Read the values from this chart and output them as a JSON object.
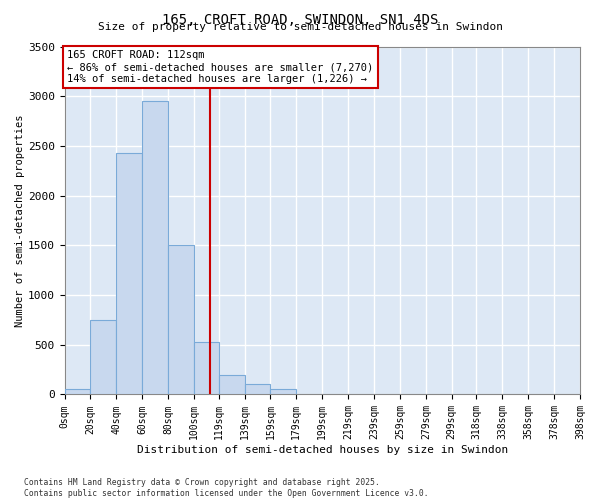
{
  "title": "165, CROFT ROAD, SWINDON, SN1 4DS",
  "subtitle": "Size of property relative to semi-detached houses in Swindon",
  "xlabel": "Distribution of semi-detached houses by size in Swindon",
  "ylabel": "Number of semi-detached properties",
  "annotation_title": "165 CROFT ROAD: 112sqm",
  "annotation_line1": "← 86% of semi-detached houses are smaller (7,270)",
  "annotation_line2": "14% of semi-detached houses are larger (1,226) →",
  "property_size": 112,
  "footer1": "Contains HM Land Registry data © Crown copyright and database right 2025.",
  "footer2": "Contains public sector information licensed under the Open Government Licence v3.0.",
  "bar_color": "#c8d8ee",
  "bar_edge_color": "#7aaad8",
  "vline_color": "#cc0000",
  "annotation_box_edgecolor": "#cc0000",
  "background_color": "#dde8f5",
  "grid_color": "#ffffff",
  "bins": [
    0,
    20,
    40,
    60,
    80,
    100,
    119,
    139,
    159,
    179,
    199,
    219,
    239,
    259,
    279,
    299,
    318,
    338,
    358,
    378,
    398
  ],
  "counts": [
    60,
    750,
    2430,
    2950,
    1500,
    530,
    200,
    110,
    60,
    0,
    0,
    0,
    0,
    0,
    0,
    0,
    0,
    0,
    0,
    0
  ],
  "ylim": [
    0,
    3500
  ],
  "yticks": [
    0,
    500,
    1000,
    1500,
    2000,
    2500,
    3000,
    3500
  ]
}
